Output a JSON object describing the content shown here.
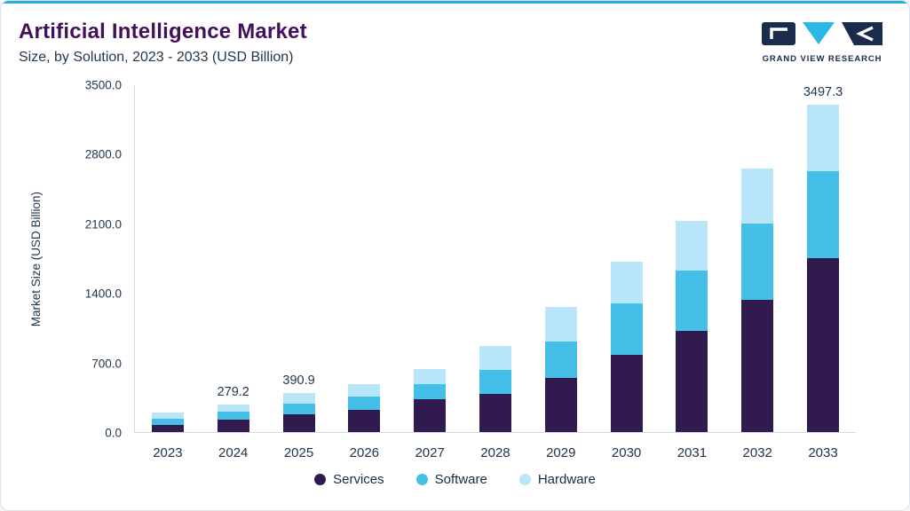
{
  "header": {
    "title": "Artificial Intelligence Market",
    "subtitle": "Size, by Solution, 2023 - 2033 (USD Billion)",
    "logo_text": "GRAND VIEW RESEARCH"
  },
  "colors": {
    "accent_top_bar": "#29abe2",
    "title_purple": "#43105c",
    "text_dark": "#22374f",
    "brand_navy": "#1b2b4d",
    "brand_cyan": "#29b8e8",
    "axis_line": "#cdd9e3"
  },
  "chart_data": {
    "type": "bar",
    "stacked": true,
    "title": "Artificial Intelligence Market",
    "subtitle": "Size, by Solution, 2023 - 2033 (USD Billion)",
    "ylabel": "Market Size (USD Billion)",
    "xlabel": "",
    "ylim": [
      0,
      3500
    ],
    "yticks": [
      0,
      700,
      1400,
      2100,
      2800,
      3500
    ],
    "ytick_labels": [
      "0.0",
      "700.0",
      "1400.0",
      "2100.0",
      "2800.0",
      "3500.0"
    ],
    "categories": [
      "2023",
      "2024",
      "2025",
      "2026",
      "2027",
      "2028",
      "2029",
      "2030",
      "2031",
      "2032",
      "2033"
    ],
    "series": [
      {
        "name": "Services",
        "color": "#311b4e",
        "values": [
          70,
          125,
          175,
          225,
          330,
          385,
          545,
          780,
          1020,
          1335,
          1856
        ]
      },
      {
        "name": "Software",
        "color": "#45bee8",
        "values": [
          64,
          82,
          115,
          135,
          155,
          245,
          370,
          520,
          610,
          770,
          928
        ]
      },
      {
        "name": "Hardware",
        "color": "#b9e5f8",
        "values": [
          62.6,
          72.2,
          100.9,
          125,
          155,
          240,
          345,
          420,
          500,
          555,
          713.3
        ]
      }
    ],
    "totals": [
      196.6,
      279.2,
      390.9,
      485,
      640,
      870,
      1260,
      1720,
      2130,
      2660,
      3497.3
    ],
    "total_labels": [
      "",
      "279.2",
      "390.9",
      "",
      "",
      "",
      "",
      "",
      "",
      "",
      "3497.3"
    ],
    "legend_position": "bottom",
    "grid": false
  }
}
